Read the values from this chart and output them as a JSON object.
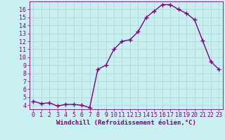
{
  "x": [
    0,
    1,
    2,
    3,
    4,
    5,
    6,
    7,
    8,
    9,
    10,
    11,
    12,
    13,
    14,
    15,
    16,
    17,
    18,
    19,
    20,
    21,
    22,
    23
  ],
  "y": [
    4.5,
    4.2,
    4.3,
    3.9,
    4.1,
    4.1,
    4.0,
    3.7,
    8.5,
    9.0,
    11.0,
    12.0,
    12.2,
    13.2,
    15.0,
    15.8,
    16.6,
    16.6,
    16.0,
    15.5,
    14.7,
    12.1,
    9.5,
    8.5
  ],
  "color": "#800080",
  "bg_color": "#c8f0f0",
  "grid_color": "#b0d8d8",
  "xlabel": "Windchill (Refroidissement éolien,°C)",
  "ylim": [
    3.5,
    17.0
  ],
  "xlim": [
    -0.5,
    23.5
  ],
  "yticks": [
    4,
    5,
    6,
    7,
    8,
    9,
    10,
    11,
    12,
    13,
    14,
    15,
    16
  ],
  "xticks": [
    0,
    1,
    2,
    3,
    4,
    5,
    6,
    7,
    8,
    9,
    10,
    11,
    12,
    13,
    14,
    15,
    16,
    17,
    18,
    19,
    20,
    21,
    22,
    23
  ],
  "xlabel_fontsize": 6.5,
  "tick_fontsize": 6.0,
  "marker": "+",
  "linewidth": 1.0,
  "markersize": 4,
  "markeredgewidth": 1.0
}
